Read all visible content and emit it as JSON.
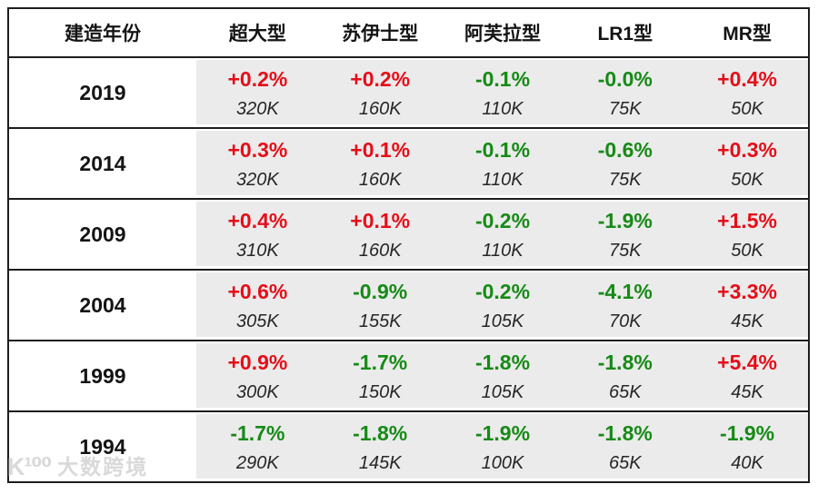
{
  "chart_data": {
    "type": "table",
    "columns": [
      "建造年份",
      "超大型",
      "苏伊士型",
      "阿芙拉型",
      "LR1型",
      "MR型"
    ],
    "rows": [
      {
        "year": "2019",
        "cells": [
          {
            "change": "+0.2%",
            "dwt": "320K"
          },
          {
            "change": "+0.2%",
            "dwt": "160K"
          },
          {
            "change": "-0.1%",
            "dwt": "110K"
          },
          {
            "change": "-0.0%",
            "dwt": "75K"
          },
          {
            "change": "+0.4%",
            "dwt": "50K"
          }
        ]
      },
      {
        "year": "2014",
        "cells": [
          {
            "change": "+0.3%",
            "dwt": "320K"
          },
          {
            "change": "+0.1%",
            "dwt": "160K"
          },
          {
            "change": "-0.1%",
            "dwt": "110K"
          },
          {
            "change": "-0.6%",
            "dwt": "75K"
          },
          {
            "change": "+0.3%",
            "dwt": "50K"
          }
        ]
      },
      {
        "year": "2009",
        "cells": [
          {
            "change": "+0.4%",
            "dwt": "310K"
          },
          {
            "change": "+0.1%",
            "dwt": "160K"
          },
          {
            "change": "-0.2%",
            "dwt": "110K"
          },
          {
            "change": "-1.9%",
            "dwt": "75K"
          },
          {
            "change": "+1.5%",
            "dwt": "50K"
          }
        ]
      },
      {
        "year": "2004",
        "cells": [
          {
            "change": "+0.6%",
            "dwt": "305K"
          },
          {
            "change": "-0.9%",
            "dwt": "155K"
          },
          {
            "change": "-0.2%",
            "dwt": "105K"
          },
          {
            "change": "-4.1%",
            "dwt": "70K"
          },
          {
            "change": "+3.3%",
            "dwt": "45K"
          }
        ]
      },
      {
        "year": "1999",
        "cells": [
          {
            "change": "+0.9%",
            "dwt": "300K"
          },
          {
            "change": "-1.7%",
            "dwt": "150K"
          },
          {
            "change": "-1.8%",
            "dwt": "105K"
          },
          {
            "change": "-1.8%",
            "dwt": "65K"
          },
          {
            "change": "+5.4%",
            "dwt": "45K"
          }
        ]
      },
      {
        "year": "1994",
        "cells": [
          {
            "change": "-1.7%",
            "dwt": "290K"
          },
          {
            "change": "-1.8%",
            "dwt": "145K"
          },
          {
            "change": "-1.9%",
            "dwt": "100K"
          },
          {
            "change": "-1.8%",
            "dwt": "65K"
          },
          {
            "change": "-1.9%",
            "dwt": "40K"
          }
        ]
      }
    ],
    "style": {
      "positive_color": "#e50e19",
      "negative_color": "#168a16",
      "data_cell_background": "#ebebeb",
      "border_color": "#1d1d1d"
    }
  },
  "watermark": {
    "logo": "K¹⁰⁰",
    "brand": "大数跨境"
  }
}
